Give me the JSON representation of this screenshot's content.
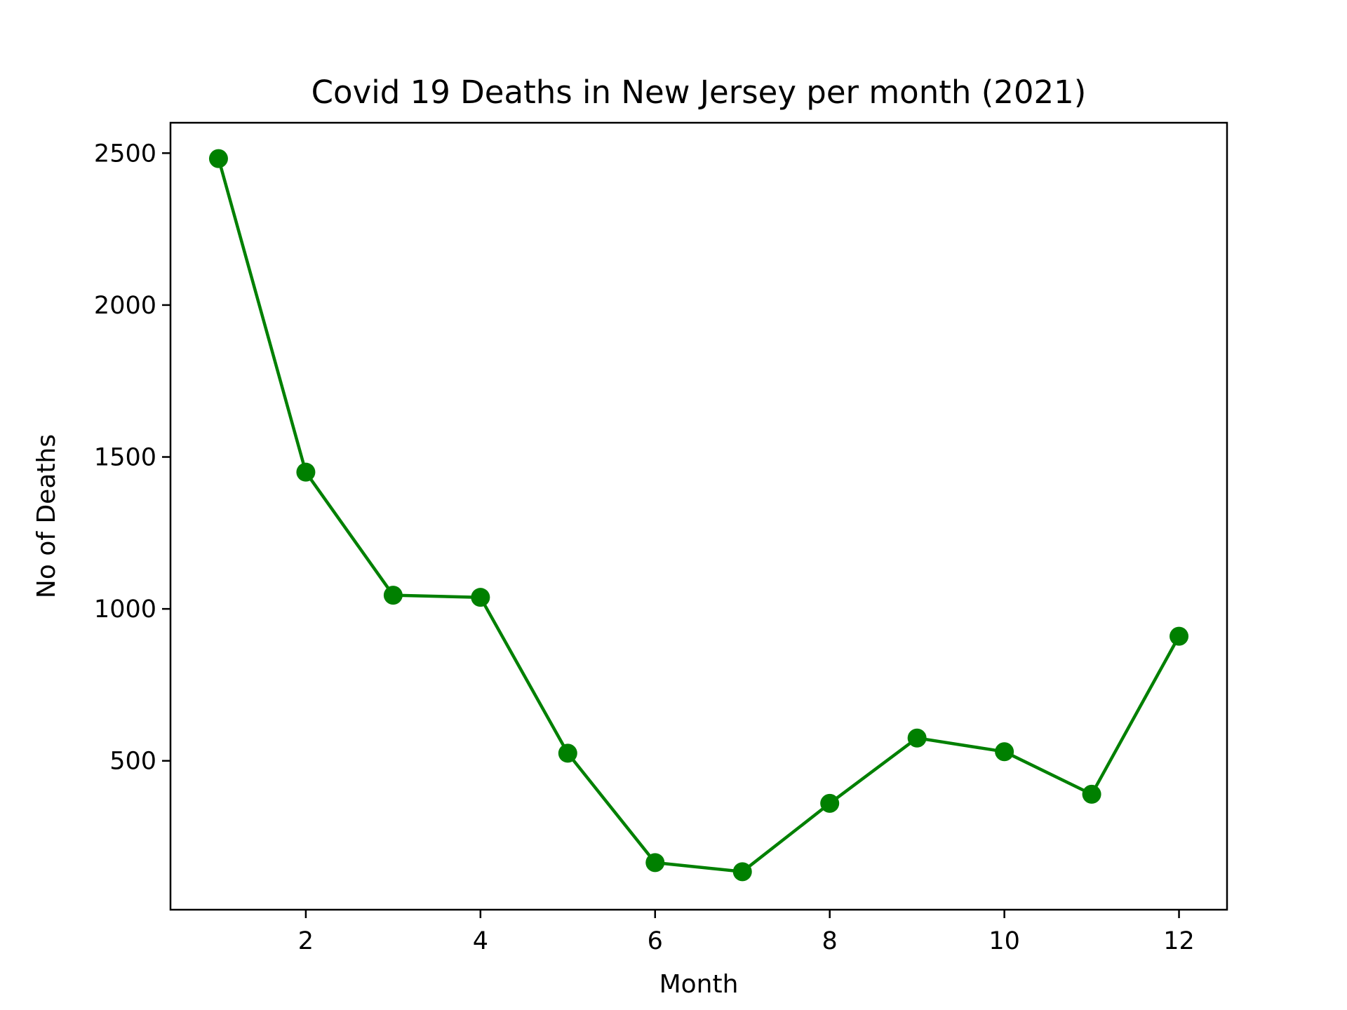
{
  "chart_data": {
    "type": "line",
    "title": "Covid 19 Deaths in New Jersey per month (2021)",
    "xlabel": "Month",
    "ylabel": "No of Deaths",
    "x": [
      1,
      2,
      3,
      4,
      5,
      6,
      7,
      8,
      9,
      10,
      11,
      12
    ],
    "series": [
      {
        "values": [
          2482,
          1450,
          1045,
          1038,
          525,
          165,
          135,
          360,
          575,
          530,
          390,
          910
        ]
      }
    ],
    "xlim": [
      0.45,
      12.55
    ],
    "ylim": [
      10,
      2600
    ],
    "xticks": [
      2,
      4,
      6,
      8,
      10,
      12
    ],
    "yticks": [
      500,
      1000,
      1500,
      2000,
      2500
    ],
    "grid": false,
    "legend": "none",
    "color": "#008000"
  }
}
